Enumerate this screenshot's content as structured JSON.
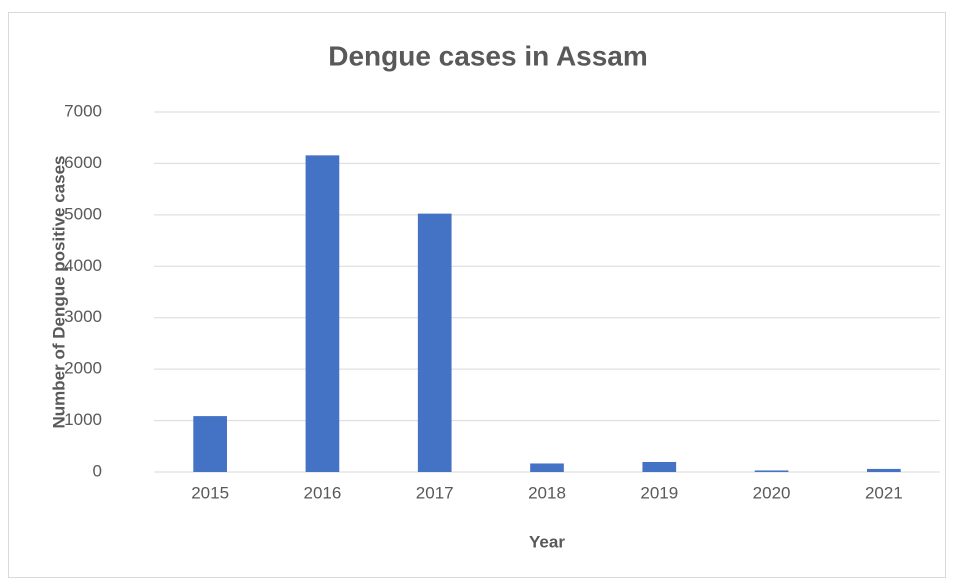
{
  "chart_data": {
    "type": "bar",
    "title": "Dengue cases in Assam",
    "x_label": "Year",
    "y_label": "Number of Dengue positive cases",
    "categories": [
      "2015",
      "2016",
      "2017",
      "2018",
      "2019",
      "2020",
      "2021"
    ],
    "values": [
      1087,
      6157,
      5024,
      166,
      195,
      30,
      60
    ],
    "color": "#4472c4",
    "ylim": [
      0,
      7000
    ],
    "yticks": [
      0,
      1000,
      2000,
      3000,
      4000,
      5000,
      6000,
      7000
    ],
    "grid": true
  }
}
